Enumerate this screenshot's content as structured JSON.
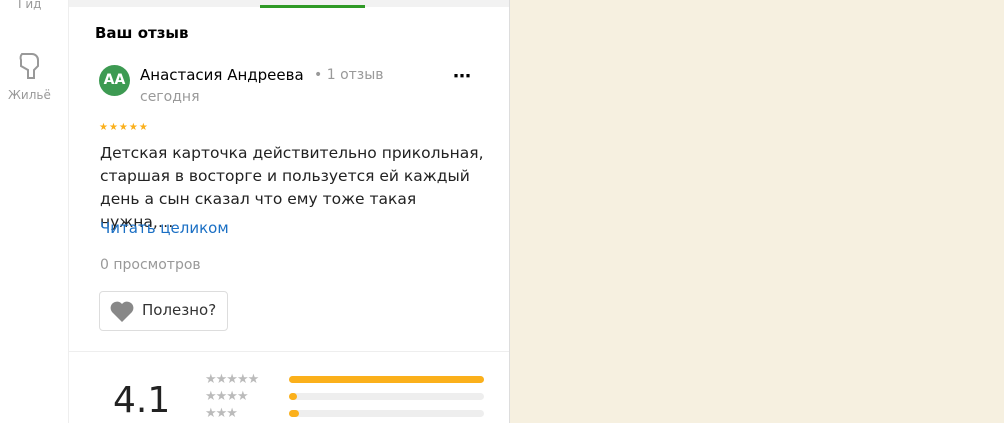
{
  "sidebar": {
    "items": [
      "Гид",
      "Жильё"
    ]
  },
  "review": {
    "section_title": "Ваш отзыв",
    "avatar_initials": "АА",
    "author": "Анастасия Андреева",
    "author_reviews": "1 отзыв",
    "date": "сегодня",
    "rating": 5,
    "text": "Детская карточка действительно прикольная, старшая в восторге и пользуется ей каждый день а сын сказал что ему тоже такая нужна,…",
    "read_more": "Читать целиком",
    "views": "0 просмотров",
    "helpful_button": "Полезно?"
  },
  "rating_summary": {
    "average": "4.1",
    "max": 100,
    "rows": [
      {
        "stars": 5,
        "share": 100
      },
      {
        "stars": 4,
        "share": 4
      },
      {
        "stars": 3,
        "share": 5
      }
    ]
  }
}
